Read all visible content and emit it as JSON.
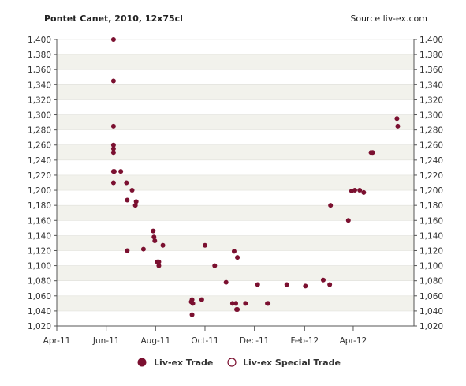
{
  "header": {
    "title": "Pontet Canet, 2010, 12x75cl",
    "source": "Source liv-ex.com"
  },
  "colors": {
    "series": "#7b1030",
    "band_light": "#ffffff",
    "band_shade": "#f2f2ec",
    "grid": "#e0e0da",
    "axis": "#555555"
  },
  "legend": [
    {
      "label": "Liv-ex Trade",
      "marker": "filled-circle"
    },
    {
      "label": "Liv-ex Special Trade",
      "marker": "hollow-circle"
    }
  ],
  "chart_data": {
    "type": "scatter",
    "title": "Pontet Canet, 2010, 12x75cl",
    "xlabel": "",
    "ylabel": "",
    "ylim": [
      1020,
      1400
    ],
    "xlim": [
      "2011-04-01",
      "2012-06-15"
    ],
    "x_ticks": [
      {
        "date": "2011-04-01",
        "label": "Apr-11"
      },
      {
        "date": "2011-06-01",
        "label": "Jun-11"
      },
      {
        "date": "2011-08-01",
        "label": "Aug-11"
      },
      {
        "date": "2011-10-01",
        "label": "Oct-11"
      },
      {
        "date": "2011-12-01",
        "label": "Dec-11"
      },
      {
        "date": "2012-02-01",
        "label": "Feb-12"
      },
      {
        "date": "2012-04-01",
        "label": "Apr-12"
      }
    ],
    "y_ticks": [
      1020,
      1040,
      1060,
      1080,
      1100,
      1120,
      1140,
      1160,
      1180,
      1200,
      1220,
      1240,
      1260,
      1280,
      1300,
      1320,
      1340,
      1360,
      1380,
      1400
    ],
    "y_tick_labels": [
      "1,020",
      "1,040",
      "1,060",
      "1,080",
      "1,100",
      "1,120",
      "1,140",
      "1,160",
      "1,180",
      "1,200",
      "1,220",
      "1,240",
      "1,260",
      "1,280",
      "1,300",
      "1,320",
      "1,340",
      "1,360",
      "1,380",
      "1,400"
    ],
    "grid": "alternating horizontal bands",
    "legend_position": "bottom-center",
    "series": [
      {
        "name": "Liv-ex Trade",
        "points": [
          {
            "x": "2011-06-10",
            "y": 1400
          },
          {
            "x": "2011-06-10",
            "y": 1345
          },
          {
            "x": "2011-06-10",
            "y": 1285
          },
          {
            "x": "2011-06-10",
            "y": 1260
          },
          {
            "x": "2011-06-10",
            "y": 1255
          },
          {
            "x": "2011-06-10",
            "y": 1250
          },
          {
            "x": "2011-06-10",
            "y": 1225
          },
          {
            "x": "2011-06-11",
            "y": 1225
          },
          {
            "x": "2011-06-10",
            "y": 1210
          },
          {
            "x": "2011-06-19",
            "y": 1225
          },
          {
            "x": "2011-06-26",
            "y": 1210
          },
          {
            "x": "2011-06-27",
            "y": 1187
          },
          {
            "x": "2011-06-27",
            "y": 1120
          },
          {
            "x": "2011-07-03",
            "y": 1200
          },
          {
            "x": "2011-07-07",
            "y": 1180
          },
          {
            "x": "2011-07-08",
            "y": 1185
          },
          {
            "x": "2011-07-17",
            "y": 1122
          },
          {
            "x": "2011-07-29",
            "y": 1146
          },
          {
            "x": "2011-07-30",
            "y": 1138
          },
          {
            "x": "2011-07-31",
            "y": 1133
          },
          {
            "x": "2011-08-03",
            "y": 1105
          },
          {
            "x": "2011-08-05",
            "y": 1105
          },
          {
            "x": "2011-08-05",
            "y": 1100
          },
          {
            "x": "2011-08-10",
            "y": 1127
          },
          {
            "x": "2011-09-14",
            "y": 1052
          },
          {
            "x": "2011-09-15",
            "y": 1055
          },
          {
            "x": "2011-09-16",
            "y": 1050
          },
          {
            "x": "2011-09-15",
            "y": 1035
          },
          {
            "x": "2011-09-27",
            "y": 1055
          },
          {
            "x": "2011-10-01",
            "y": 1127
          },
          {
            "x": "2011-10-13",
            "y": 1100
          },
          {
            "x": "2011-10-27",
            "y": 1078
          },
          {
            "x": "2011-11-04",
            "y": 1050
          },
          {
            "x": "2011-11-06",
            "y": 1119
          },
          {
            "x": "2011-11-08",
            "y": 1050
          },
          {
            "x": "2011-11-09",
            "y": 1042
          },
          {
            "x": "2011-11-10",
            "y": 1111
          },
          {
            "x": "2011-11-10",
            "y": 1042
          },
          {
            "x": "2011-11-20",
            "y": 1050
          },
          {
            "x": "2011-12-05",
            "y": 1075
          },
          {
            "x": "2011-12-17",
            "y": 1050
          },
          {
            "x": "2011-12-18",
            "y": 1050
          },
          {
            "x": "2012-01-10",
            "y": 1075
          },
          {
            "x": "2012-02-02",
            "y": 1073
          },
          {
            "x": "2012-02-24",
            "y": 1081
          },
          {
            "x": "2012-03-03",
            "y": 1075
          },
          {
            "x": "2012-03-04",
            "y": 1180
          },
          {
            "x": "2012-03-26",
            "y": 1160
          },
          {
            "x": "2012-03-30",
            "y": 1199
          },
          {
            "x": "2012-04-03",
            "y": 1200
          },
          {
            "x": "2012-04-09",
            "y": 1200
          },
          {
            "x": "2012-04-14",
            "y": 1197
          },
          {
            "x": "2012-04-23",
            "y": 1250
          },
          {
            "x": "2012-04-25",
            "y": 1250
          },
          {
            "x": "2012-05-25",
            "y": 1295
          },
          {
            "x": "2012-05-26",
            "y": 1285
          }
        ]
      },
      {
        "name": "Liv-ex Special Trade",
        "points": []
      }
    ]
  }
}
